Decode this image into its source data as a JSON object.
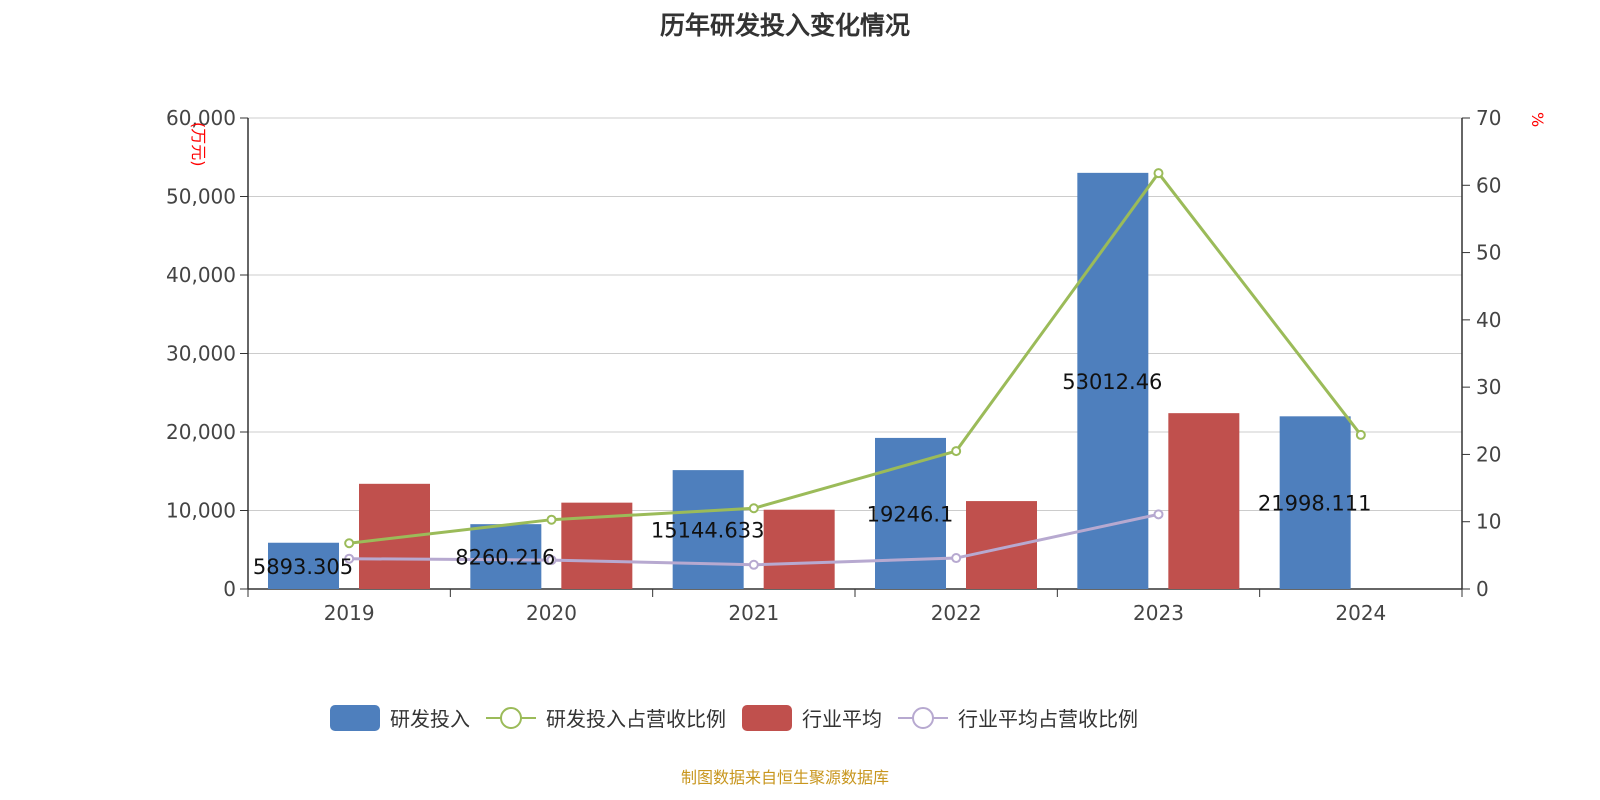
{
  "chart_data": {
    "type": "bar",
    "title": "历年研发投入变化情况",
    "categories": [
      "2019",
      "2020",
      "2021",
      "2022",
      "2023",
      "2024"
    ],
    "y_left": {
      "label": "(万元)",
      "ylim": [
        0,
        60000
      ],
      "ticks": [
        "0",
        "10,000",
        "20,000",
        "30,000",
        "40,000",
        "50,000",
        "60,000"
      ]
    },
    "y_right": {
      "label": "%",
      "ylim": [
        0,
        70
      ],
      "ticks": [
        "0",
        "10",
        "20",
        "30",
        "40",
        "50",
        "60",
        "70"
      ]
    },
    "series": [
      {
        "name": "研发投入",
        "type": "bar",
        "axis": "left",
        "color": "#4e7fbd",
        "values": [
          5893.305,
          8260.216,
          15144.633,
          19246.1,
          53012.46,
          21998.111
        ],
        "labels": [
          "5893.305",
          "8260.216",
          "15144.633",
          "19246.1",
          "53012.46",
          "21998.111"
        ]
      },
      {
        "name": "研发投入占营收比例",
        "type": "line",
        "axis": "right",
        "color": "#9bbb59",
        "values": [
          6.8,
          10.3,
          12.0,
          20.5,
          61.8,
          22.9
        ]
      },
      {
        "name": "行业平均",
        "type": "bar",
        "axis": "left",
        "color": "#c0504d",
        "values": [
          13400,
          11000,
          10100,
          11200,
          22400,
          null
        ]
      },
      {
        "name": "行业平均占营收比例",
        "type": "line",
        "axis": "right",
        "color": "#b7a9d0",
        "values": [
          4.5,
          4.3,
          3.6,
          4.6,
          11.1,
          null
        ]
      }
    ],
    "grid": true,
    "legend_position": "bottom"
  },
  "footer": "制图数据来自恒生聚源数据库"
}
